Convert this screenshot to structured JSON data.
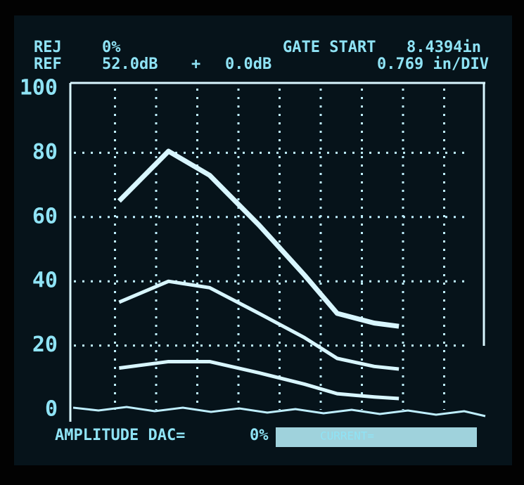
{
  "chart_data": {
    "type": "line",
    "annotations": [
      "REJ",
      "0%",
      "GATE START",
      "8.4394in",
      "REF",
      "52.0dB",
      "+",
      "0.0dB",
      "0.769 in/DIV",
      "AMPLITUDE DAC=",
      "0%",
      "CURRENT="
    ],
    "x": [
      1.1,
      2.3,
      3.3,
      4.5,
      5.6,
      6.4,
      7.3,
      7.9
    ],
    "series": [
      {
        "color": "#d8f6ff",
        "values": [
          65,
          80.5,
          73,
          57.5,
          42,
          30,
          27,
          26
        ]
      },
      {
        "color": "#d8f6ff",
        "values": [
          33.5,
          40,
          38,
          30,
          22.5,
          16,
          13.5,
          12.7
        ]
      },
      {
        "color": "#d8f6ff",
        "values": [
          13,
          15,
          15,
          11.5,
          8,
          5,
          4,
          3.5
        ]
      }
    ],
    "xlim": [
      0,
      10
    ],
    "ylim": [
      0,
      100
    ],
    "yticks": [
      0,
      20,
      40,
      60,
      80,
      100
    ],
    "grid": true
  }
}
